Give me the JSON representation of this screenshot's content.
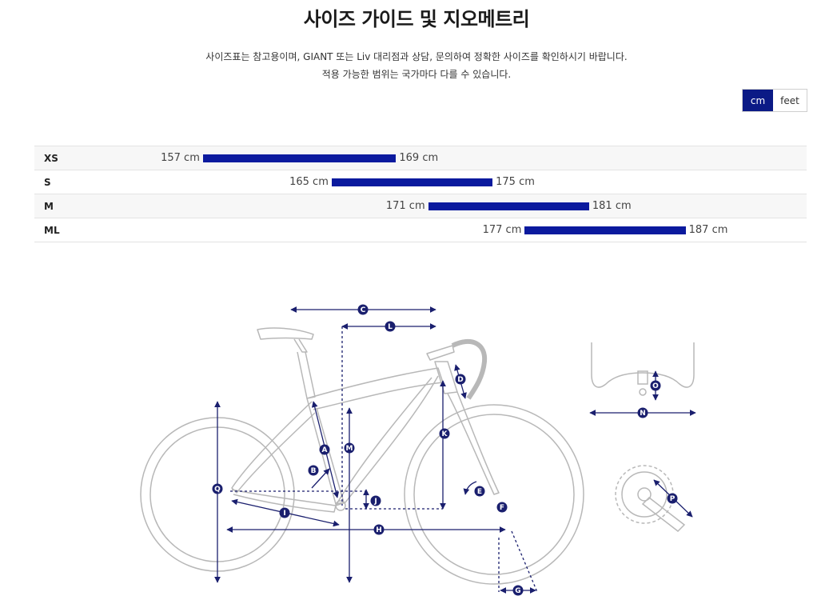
{
  "page": {
    "title": "사이즈 가이드 및 지오메트리",
    "description_line1": "사이즈표는 참고용이며, GIANT 또는 Liv 대리점과 상담, 문의하여 정확한 사이즈를 확인하시기 바랍니다.",
    "description_line2": "적용 가능한 범위는 국가마다 다를 수 있습니다."
  },
  "unit_toggle": {
    "cm_label": "cm",
    "feet_label": "feet",
    "selected": "cm"
  },
  "colors": {
    "accent": "#0b1a9e",
    "line": "#1a1f6e",
    "frame": "#b8b8b8"
  },
  "size_chart": {
    "scale_min": 150,
    "scale_max": 190,
    "rows": [
      {
        "size": "XS",
        "min": 157,
        "max": 169,
        "min_label": "157 cm",
        "max_label": "169 cm"
      },
      {
        "size": "S",
        "min": 165,
        "max": 175,
        "min_label": "165 cm",
        "max_label": "175 cm"
      },
      {
        "size": "M",
        "min": 171,
        "max": 181,
        "min_label": "171 cm",
        "max_label": "181 cm"
      },
      {
        "size": "ML",
        "min": 177,
        "max": 187,
        "min_label": "177 cm",
        "max_label": "187 cm"
      }
    ]
  },
  "geometry_labels": [
    "A",
    "B",
    "C",
    "D",
    "E",
    "F",
    "G",
    "H",
    "I",
    "J",
    "K",
    "L",
    "M",
    "N",
    "O",
    "P",
    "Q"
  ]
}
